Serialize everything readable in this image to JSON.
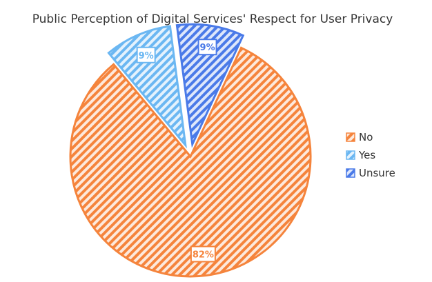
{
  "chart_data": {
    "type": "pie",
    "title": "Public Perception of Digital Services' Respect for User Privacy",
    "series": [
      {
        "slices": [
          {
            "label": "No",
            "value": 82,
            "display": "82%",
            "color": "#F5843C"
          },
          {
            "label": "Yes",
            "value": 9,
            "display": "9%",
            "color": "#6BB7F2"
          },
          {
            "label": "Unsure",
            "value": 9,
            "display": "9%",
            "color": "#4A7AE8"
          }
        ]
      }
    ],
    "legend": {
      "position": "right"
    },
    "exploded_slices": [
      "Yes",
      "Unsure"
    ],
    "fill_style": "diagonal-hatch"
  }
}
